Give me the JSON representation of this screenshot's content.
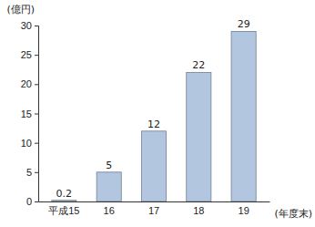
{
  "chart_data": {
    "type": "bar",
    "categories": [
      "平成15",
      "16",
      "17",
      "18",
      "19"
    ],
    "values": [
      0.2,
      5,
      12,
      22,
      29
    ],
    "color": "#b3c6df",
    "y_label": "(億円)",
    "x_label": "(年度末)",
    "ylim": [
      0,
      30
    ],
    "yticks": [
      0,
      5,
      10,
      15,
      20,
      25,
      30
    ],
    "grid": false,
    "data_labels": true
  }
}
